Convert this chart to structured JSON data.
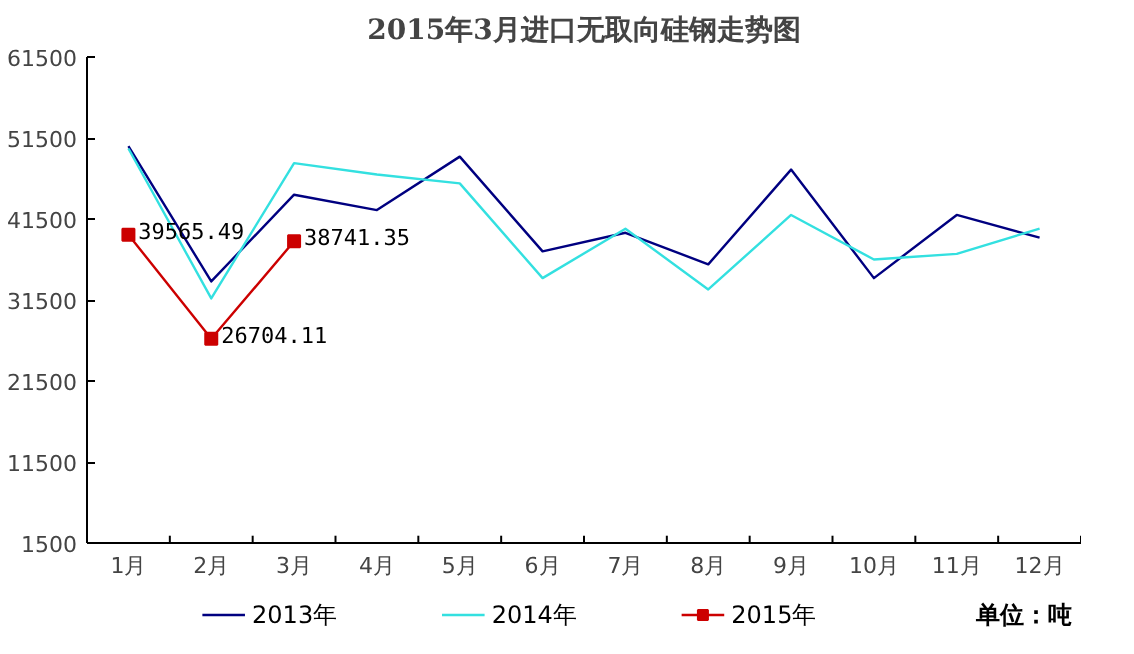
{
  "chart_data": {
    "type": "line",
    "title": "2015年3月进口无取向硅钢走势图",
    "categories": [
      "1月",
      "2月",
      "3月",
      "4月",
      "5月",
      "6月",
      "7月",
      "8月",
      "9月",
      "10月",
      "11月",
      "12月"
    ],
    "series": [
      {
        "name": "2013年",
        "color": "#000080",
        "values": [
          50500,
          33800,
          44500,
          42600,
          49200,
          37500,
          39800,
          35900,
          47600,
          34200,
          42000,
          39200
        ]
      },
      {
        "name": "2014年",
        "color": "#33e0e0",
        "values": [
          50200,
          31700,
          48400,
          47000,
          45900,
          34200,
          40300,
          32800,
          42000,
          36500,
          37200,
          40300
        ]
      },
      {
        "name": "2015年",
        "color": "#cc0000",
        "marker": "square",
        "values": [
          39565.49,
          26704.11,
          38741.35,
          null,
          null,
          null,
          null,
          null,
          null,
          null,
          null,
          null
        ],
        "value_labels": [
          "39565.49",
          "26704.11",
          "38741.35",
          null,
          null,
          null,
          null,
          null,
          null,
          null,
          null,
          null
        ]
      }
    ],
    "ylim": [
      1500,
      61500
    ],
    "yticks": [
      1500,
      11500,
      21500,
      31500,
      41500,
      51500,
      61500
    ],
    "grid": false,
    "legend": "bottom",
    "annotations": [
      "单位：吨"
    ]
  }
}
